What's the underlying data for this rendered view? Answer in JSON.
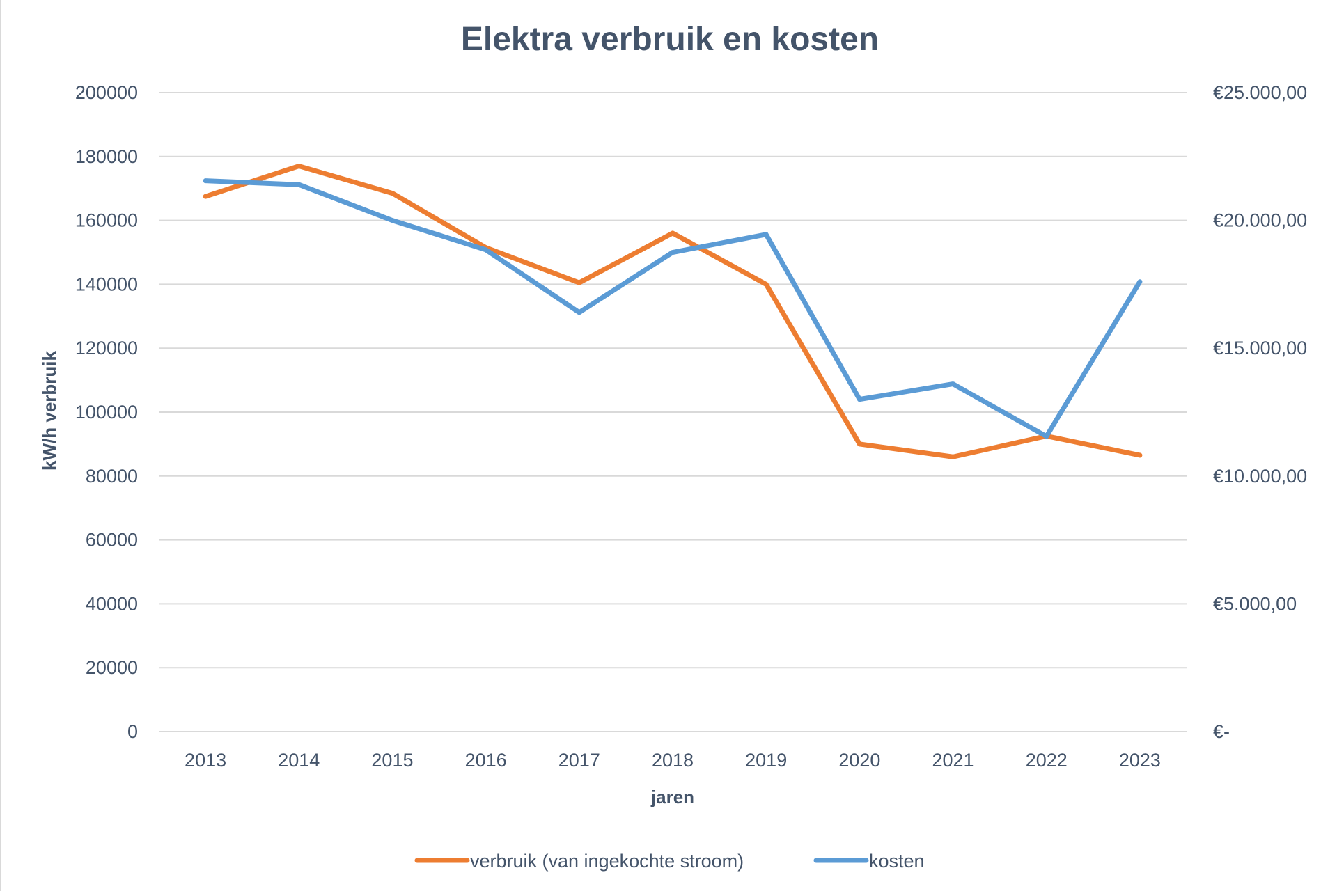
{
  "chart_data": {
    "type": "line",
    "title": "Elektra verbruik en kosten",
    "xlabel": "jaren",
    "ylabel": "kW/h verbruik",
    "y2label": "",
    "categories": [
      "2013",
      "2014",
      "2015",
      "2016",
      "2017",
      "2018",
      "2019",
      "2020",
      "2021",
      "2022",
      "2023"
    ],
    "ylim": [
      0,
      200000
    ],
    "yticks": [
      "0",
      "20000",
      "40000",
      "60000",
      "80000",
      "100000",
      "120000",
      "140000",
      "160000",
      "180000",
      "200000"
    ],
    "y2lim": [
      0,
      25000
    ],
    "y2ticks": [
      "€-",
      "€5.000,00",
      "€10.000,00",
      "€15.000,00",
      "€20.000,00",
      "€25.000,00"
    ],
    "grid": true,
    "legend_position": "bottom",
    "series": [
      {
        "name": "verbruik (van ingekochte stroom)",
        "axis": "left",
        "color": "#ed7d31",
        "values": [
          167500,
          177000,
          168500,
          151500,
          140500,
          156000,
          140000,
          90000,
          86000,
          92500,
          86500
        ]
      },
      {
        "name": "kosten",
        "axis": "right",
        "color": "#5b9bd5",
        "values": [
          21550,
          21400,
          20000,
          18850,
          16400,
          18750,
          19450,
          13000,
          13600,
          11550,
          17600
        ]
      }
    ]
  }
}
